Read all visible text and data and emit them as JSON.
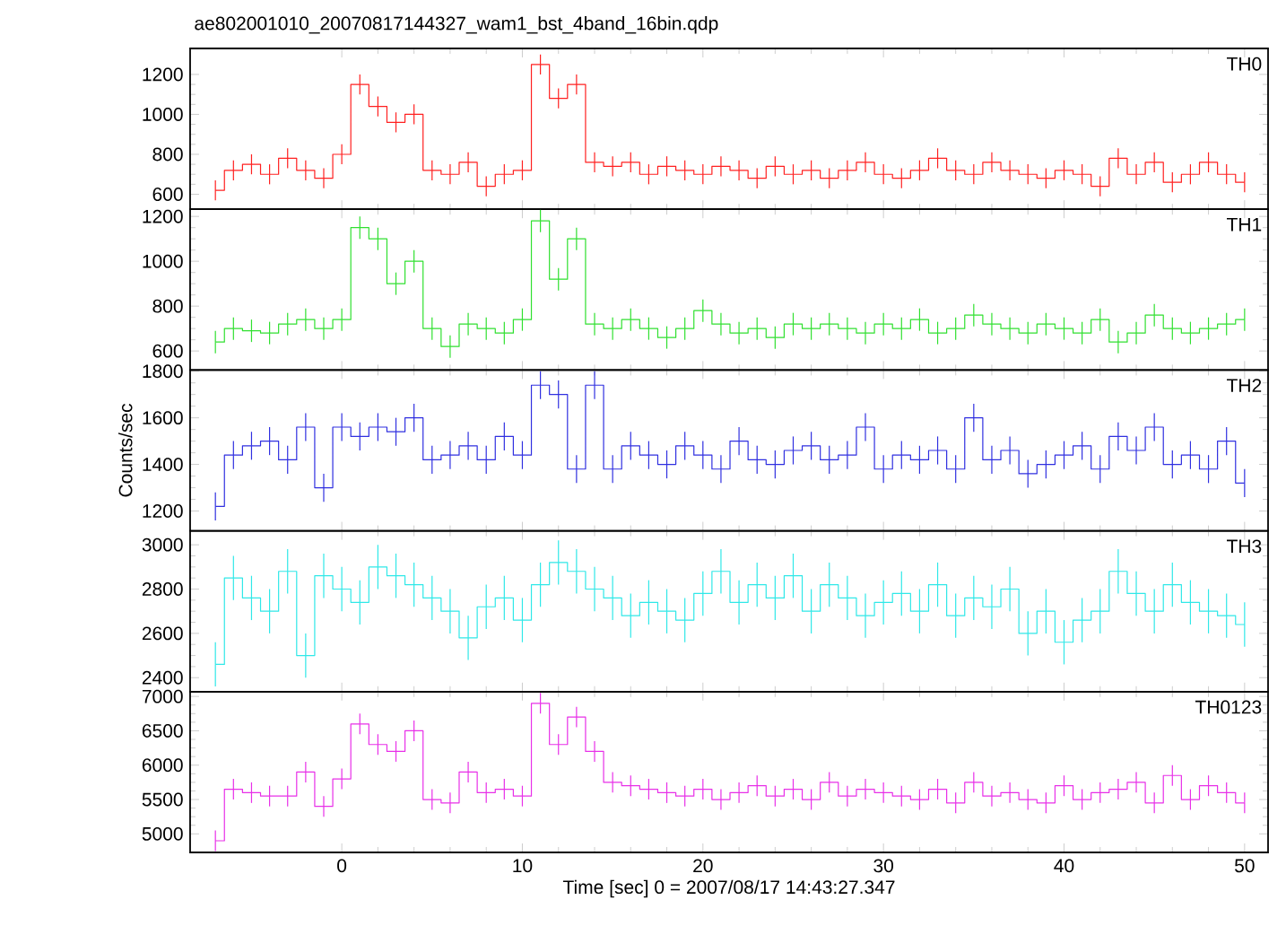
{
  "chart_data": [
    {
      "type": "step",
      "title": "ae802001010_20070817144327_wam1_bst_4band_16bin.qdp",
      "annotations": [
        "TH0"
      ],
      "tick_labels": "y",
      "xlim": [
        -8.4,
        51.3
      ],
      "xticks": [
        0,
        10,
        20,
        30,
        40,
        50
      ],
      "ylim": [
        525,
        1330
      ],
      "yticks": [
        600,
        800,
        1000,
        1200
      ],
      "x": [
        -7,
        -6,
        -5,
        -4,
        -3,
        -2,
        -1,
        0,
        1,
        2,
        3,
        4,
        5,
        6,
        7,
        8,
        9,
        10,
        11,
        12,
        13,
        14,
        15,
        16,
        17,
        18,
        19,
        20,
        21,
        22,
        23,
        24,
        25,
        26,
        27,
        28,
        29,
        30,
        31,
        32,
        33,
        34,
        35,
        36,
        37,
        38,
        39,
        40,
        41,
        42,
        43,
        44,
        45,
        46,
        47,
        48,
        49,
        50
      ],
      "series": [
        {
          "color": "#ff2020",
          "values": [
            620,
            720,
            750,
            700,
            780,
            720,
            680,
            800,
            1150,
            1040,
            960,
            1000,
            720,
            700,
            760,
            640,
            700,
            720,
            1250,
            1080,
            1150,
            760,
            740,
            760,
            700,
            740,
            720,
            700,
            740,
            720,
            680,
            740,
            700,
            720,
            680,
            720,
            760,
            700,
            680,
            720,
            780,
            720,
            700,
            760,
            720,
            700,
            680,
            720,
            700,
            640,
            780,
            700,
            760,
            660,
            700,
            760,
            700,
            660
          ],
          "errors": [
            50,
            50,
            50,
            50,
            50,
            50,
            50,
            50,
            50,
            50,
            50,
            50,
            50,
            50,
            50,
            50,
            50,
            50,
            50,
            50,
            50,
            50,
            50,
            50,
            50,
            50,
            50,
            50,
            50,
            50,
            50,
            50,
            50,
            50,
            50,
            50,
            50,
            50,
            50,
            50,
            50,
            50,
            50,
            50,
            50,
            50,
            50,
            50,
            50,
            50,
            50,
            50,
            50,
            50,
            50,
            50,
            50,
            50
          ]
        }
      ]
    },
    {
      "type": "step",
      "annotations": [
        "TH1"
      ],
      "tick_labels": "y",
      "xlim": [
        -8.4,
        51.3
      ],
      "xticks": [
        0,
        10,
        20,
        30,
        40,
        50
      ],
      "ylim": [
        515,
        1232
      ],
      "yticks": [
        600,
        800,
        1000,
        1200
      ],
      "x": [
        -7,
        -6,
        -5,
        -4,
        -3,
        -2,
        -1,
        0,
        1,
        2,
        3,
        4,
        5,
        6,
        7,
        8,
        9,
        10,
        11,
        12,
        13,
        14,
        15,
        16,
        17,
        18,
        19,
        20,
        21,
        22,
        23,
        24,
        25,
        26,
        27,
        28,
        29,
        30,
        31,
        32,
        33,
        34,
        35,
        36,
        37,
        38,
        39,
        40,
        41,
        42,
        43,
        44,
        45,
        46,
        47,
        48,
        49,
        50
      ],
      "series": [
        {
          "color": "#30e030",
          "values": [
            640,
            700,
            690,
            680,
            720,
            740,
            700,
            740,
            1150,
            1100,
            900,
            1000,
            700,
            620,
            720,
            700,
            680,
            740,
            1180,
            920,
            1100,
            720,
            700,
            740,
            700,
            660,
            700,
            780,
            720,
            680,
            700,
            660,
            720,
            700,
            720,
            700,
            680,
            720,
            700,
            740,
            680,
            700,
            760,
            720,
            700,
            680,
            720,
            700,
            680,
            740,
            640,
            680,
            760,
            700,
            680,
            700,
            720,
            740
          ],
          "errors": [
            50,
            50,
            50,
            50,
            50,
            50,
            50,
            50,
            50,
            50,
            50,
            50,
            50,
            50,
            50,
            50,
            50,
            50,
            50,
            50,
            50,
            50,
            50,
            50,
            50,
            50,
            50,
            50,
            50,
            50,
            50,
            50,
            50,
            50,
            50,
            50,
            50,
            50,
            50,
            50,
            50,
            50,
            50,
            50,
            50,
            50,
            50,
            50,
            50,
            50,
            50,
            50,
            50,
            50,
            50,
            50,
            50,
            50
          ]
        }
      ]
    },
    {
      "type": "step",
      "annotations": [
        "TH2"
      ],
      "ylabel": "Counts/sec",
      "tick_labels": "y",
      "xlim": [
        -8.4,
        51.3
      ],
      "xticks": [
        0,
        10,
        20,
        30,
        40,
        50
      ],
      "ylim": [
        1115,
        1805
      ],
      "yticks": [
        1200,
        1400,
        1600,
        1800
      ],
      "x": [
        -7,
        -6,
        -5,
        -4,
        -3,
        -2,
        -1,
        0,
        1,
        2,
        3,
        4,
        5,
        6,
        7,
        8,
        9,
        10,
        11,
        12,
        13,
        14,
        15,
        16,
        17,
        18,
        19,
        20,
        21,
        22,
        23,
        24,
        25,
        26,
        27,
        28,
        29,
        30,
        31,
        32,
        33,
        34,
        35,
        36,
        37,
        38,
        39,
        40,
        41,
        42,
        43,
        44,
        45,
        46,
        47,
        48,
        49,
        50
      ],
      "series": [
        {
          "color": "#3030e0",
          "values": [
            1220,
            1440,
            1480,
            1500,
            1420,
            1560,
            1300,
            1560,
            1520,
            1560,
            1540,
            1600,
            1420,
            1440,
            1480,
            1420,
            1520,
            1440,
            1740,
            1700,
            1380,
            1740,
            1380,
            1480,
            1440,
            1400,
            1480,
            1440,
            1380,
            1500,
            1420,
            1400,
            1460,
            1480,
            1420,
            1440,
            1560,
            1380,
            1440,
            1420,
            1460,
            1380,
            1600,
            1420,
            1460,
            1360,
            1400,
            1440,
            1480,
            1380,
            1520,
            1460,
            1560,
            1400,
            1440,
            1380,
            1500,
            1320
          ],
          "errors": [
            60,
            60,
            60,
            60,
            60,
            60,
            60,
            60,
            60,
            60,
            60,
            60,
            60,
            60,
            60,
            60,
            60,
            60,
            60,
            60,
            60,
            60,
            60,
            60,
            60,
            60,
            60,
            60,
            60,
            60,
            60,
            60,
            60,
            60,
            60,
            60,
            60,
            60,
            60,
            60,
            60,
            60,
            60,
            60,
            60,
            60,
            60,
            60,
            60,
            60,
            60,
            60,
            60,
            60,
            60,
            60,
            60,
            60
          ]
        }
      ]
    },
    {
      "type": "step",
      "annotations": [
        "TH3"
      ],
      "tick_labels": "y",
      "xlim": [
        -8.4,
        51.3
      ],
      "xticks": [
        0,
        10,
        20,
        30,
        40,
        50
      ],
      "ylim": [
        2337,
        3063
      ],
      "yticks": [
        2400,
        2600,
        2800,
        3000
      ],
      "x": [
        -7,
        -6,
        -5,
        -4,
        -3,
        -2,
        -1,
        0,
        1,
        2,
        3,
        4,
        5,
        6,
        7,
        8,
        9,
        10,
        11,
        12,
        13,
        14,
        15,
        16,
        17,
        18,
        19,
        20,
        21,
        22,
        23,
        24,
        25,
        26,
        27,
        28,
        29,
        30,
        31,
        32,
        33,
        34,
        35,
        36,
        37,
        38,
        39,
        40,
        41,
        42,
        43,
        44,
        45,
        46,
        47,
        48,
        49,
        50
      ],
      "series": [
        {
          "color": "#30e8e8",
          "values": [
            2460,
            2850,
            2760,
            2700,
            2880,
            2500,
            2860,
            2800,
            2740,
            2900,
            2860,
            2820,
            2760,
            2700,
            2580,
            2720,
            2760,
            2660,
            2820,
            2920,
            2880,
            2800,
            2760,
            2680,
            2740,
            2700,
            2660,
            2780,
            2880,
            2740,
            2820,
            2760,
            2860,
            2700,
            2820,
            2760,
            2680,
            2740,
            2780,
            2700,
            2820,
            2680,
            2760,
            2720,
            2800,
            2600,
            2700,
            2560,
            2660,
            2700,
            2880,
            2780,
            2700,
            2820,
            2740,
            2700,
            2680,
            2640
          ],
          "errors": [
            100,
            100,
            100,
            100,
            100,
            100,
            100,
            100,
            100,
            100,
            100,
            100,
            100,
            100,
            100,
            100,
            100,
            100,
            100,
            100,
            100,
            100,
            100,
            100,
            100,
            100,
            100,
            100,
            100,
            100,
            100,
            100,
            100,
            100,
            100,
            100,
            100,
            100,
            100,
            100,
            100,
            100,
            100,
            100,
            100,
            100,
            100,
            100,
            100,
            100,
            100,
            100,
            100,
            100,
            100,
            100,
            100,
            100
          ]
        }
      ]
    },
    {
      "type": "step",
      "annotations": [
        "TH0123"
      ],
      "xlabel": "Time [sec] 0 = 2007/08/17 14:43:27.347",
      "xlim": [
        -8.4,
        51.3
      ],
      "xticks": [
        0,
        10,
        20,
        30,
        40,
        50
      ],
      "ylim": [
        4730,
        7070
      ],
      "yticks": [
        5000,
        5500,
        6000,
        6500,
        7000
      ],
      "x": [
        -7,
        -6,
        -5,
        -4,
        -3,
        -2,
        -1,
        0,
        1,
        2,
        3,
        4,
        5,
        6,
        7,
        8,
        9,
        10,
        11,
        12,
        13,
        14,
        15,
        16,
        17,
        18,
        19,
        20,
        21,
        22,
        23,
        24,
        25,
        26,
        27,
        28,
        29,
        30,
        31,
        32,
        33,
        34,
        35,
        36,
        37,
        38,
        39,
        40,
        41,
        42,
        43,
        44,
        45,
        46,
        47,
        48,
        49,
        50
      ],
      "series": [
        {
          "color": "#e830e8",
          "values": [
            4900,
            5650,
            5600,
            5550,
            5550,
            5900,
            5400,
            5800,
            6600,
            6300,
            6200,
            6500,
            5500,
            5450,
            5900,
            5600,
            5650,
            5550,
            6900,
            6300,
            6700,
            6200,
            5750,
            5700,
            5650,
            5600,
            5550,
            5650,
            5500,
            5600,
            5700,
            5550,
            5650,
            5500,
            5750,
            5550,
            5650,
            5600,
            5550,
            5500,
            5650,
            5450,
            5750,
            5550,
            5600,
            5500,
            5450,
            5700,
            5500,
            5600,
            5650,
            5750,
            5450,
            5850,
            5500,
            5700,
            5600,
            5450
          ],
          "errors": [
            150,
            150,
            150,
            150,
            150,
            150,
            150,
            150,
            150,
            150,
            150,
            150,
            150,
            150,
            150,
            150,
            150,
            150,
            150,
            150,
            150,
            150,
            150,
            150,
            150,
            150,
            150,
            150,
            150,
            150,
            150,
            150,
            150,
            150,
            150,
            150,
            150,
            150,
            150,
            150,
            150,
            150,
            150,
            150,
            150,
            150,
            150,
            150,
            150,
            150,
            150,
            150,
            150,
            150,
            150,
            150,
            150,
            150
          ]
        }
      ]
    }
  ]
}
